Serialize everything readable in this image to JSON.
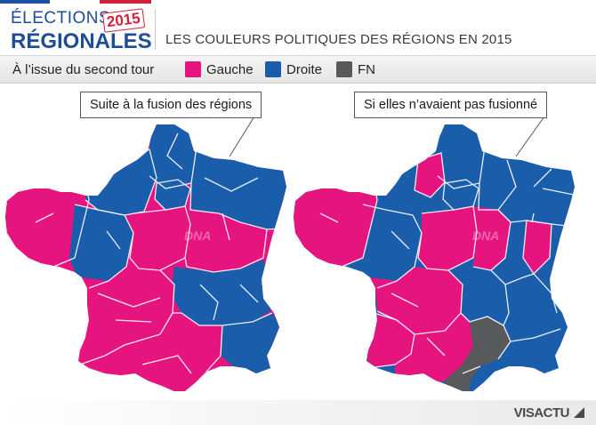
{
  "header": {
    "logo_line1": "ÉLECTIONS",
    "logo_line2": "RÉGIONALES",
    "logo_year": "2015",
    "title": "LES COULEURS POLITIQUES DES RÉGIONS EN 2015"
  },
  "legend": {
    "caption": "À l’issue du second tour",
    "items": [
      {
        "label": "Gauche",
        "color": "#e6147f"
      },
      {
        "label": "Droite",
        "color": "#1a5eab"
      },
      {
        "label": "FN",
        "color": "#58595b"
      }
    ]
  },
  "maps": [
    {
      "callout": "Suite à la fusion des régions"
    },
    {
      "callout": "Si elles n’avaient pas fusionné"
    }
  ],
  "watermark": "DNA",
  "brand": "VISACTU",
  "colors": {
    "gauche": "#e6147f",
    "droite": "#1a5eab",
    "fn": "#58595b",
    "border": "#ffffff"
  }
}
